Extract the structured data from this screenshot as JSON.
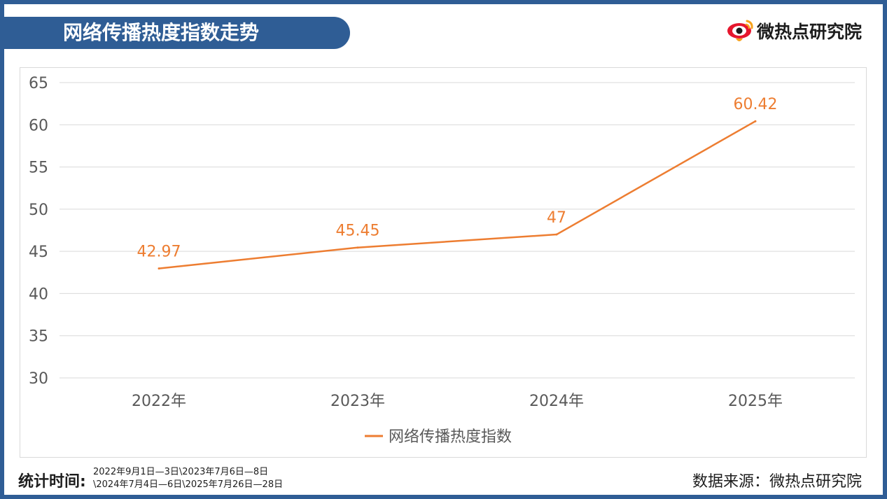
{
  "header": {
    "title": "网络传播热度指数走势",
    "brand": "微热点研究院"
  },
  "footer": {
    "period_label": "统计时间:",
    "period_line1": "2022年9月1日—3日\\2023年7月6日—8日",
    "period_line2": "\\2024年7月4日—6日\\2025年7月26日—28日",
    "source": "数据来源：微热点研究院"
  },
  "colors": {
    "frame": "#2f5d95",
    "line": "#ed7d31",
    "grid": "#d9d9d9",
    "axis_text": "#595959"
  },
  "chart_data": {
    "type": "line",
    "categories": [
      "2022年",
      "2023年",
      "2024年",
      "2025年"
    ],
    "series": [
      {
        "name": "网络传播热度指数",
        "values": [
          42.97,
          45.45,
          47,
          60.42
        ],
        "labels": [
          "42.97",
          "45.45",
          "47",
          "60.42"
        ]
      }
    ],
    "ylim": [
      30,
      65
    ],
    "yticks": [
      30,
      35,
      40,
      45,
      50,
      55,
      60,
      65
    ],
    "grid": true,
    "legend": "bottom"
  }
}
